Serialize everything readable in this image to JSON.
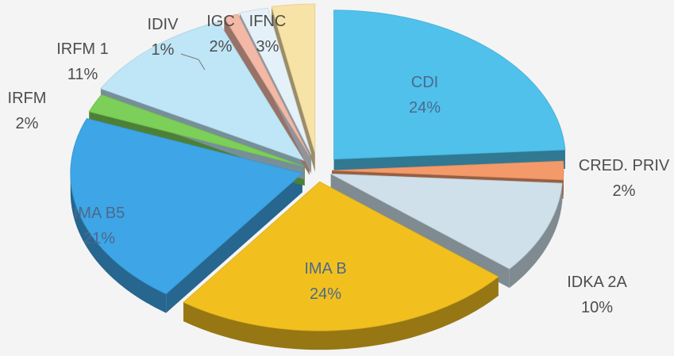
{
  "chart_data": {
    "type": "pie",
    "variant": "3d-exploded",
    "title": "",
    "categories": [
      "CDI",
      "CRED. PRIV",
      "IDKA 2A",
      "IMA B",
      "IMA B5",
      "IRFM",
      "IRFM 1",
      "IDIV",
      "IGC",
      "IFNC"
    ],
    "values": [
      24,
      2,
      10,
      24,
      21,
      2,
      11,
      1,
      2,
      3
    ],
    "labels": [
      "24%",
      "2%",
      "10%",
      "24%",
      "21%",
      "2%",
      "11%",
      "1%",
      "2%",
      "3%"
    ],
    "colors": [
      "#4fc1eb",
      "#f49a6a",
      "#cfe0ea",
      "#f2c01e",
      "#3ea5e6",
      "#7ccf58",
      "#bfe6f7",
      "#f4b8a6",
      "#e5f1f8",
      "#f8e3a6"
    ],
    "legend": "none"
  }
}
